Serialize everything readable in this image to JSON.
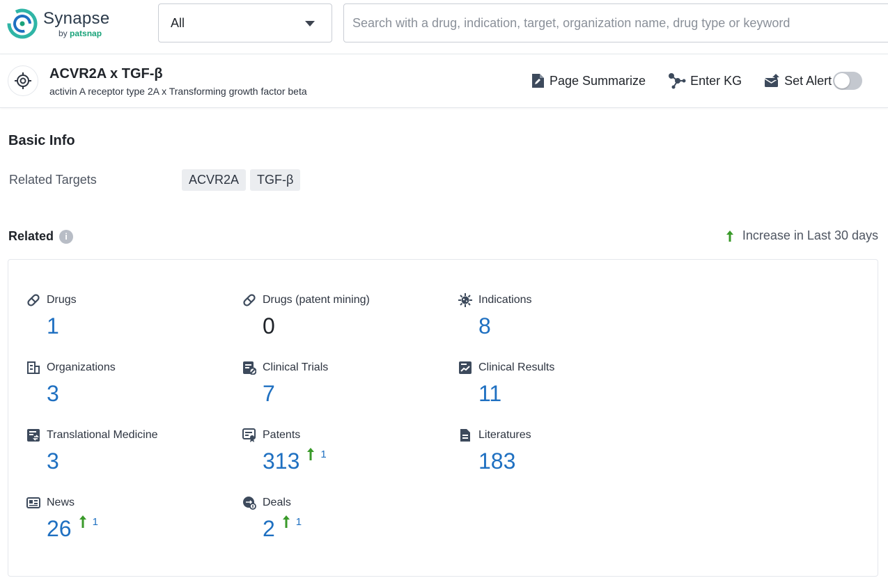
{
  "brand": {
    "name": "Synapse",
    "by_prefix": "by ",
    "by_brand": "patsnap",
    "colors": {
      "teal": "#1aa37a",
      "blue": "#1f70c1",
      "green": "#3a9a2a"
    }
  },
  "search": {
    "scope_value": "All",
    "placeholder": "Search with a drug, indication, target, organization name, drug type or keyword"
  },
  "header": {
    "title": "ACVR2A x TGF-β",
    "subtitle": "activin A receptor type 2A x Transforming growth factor beta",
    "actions": {
      "summarize": "Page Summarize",
      "kg": "Enter KG",
      "alert": "Set Alert"
    },
    "alert_enabled": false
  },
  "basic_info": {
    "title": "Basic Info",
    "related_targets_label": "Related Targets",
    "targets": [
      "ACVR2A",
      "TGF-β"
    ]
  },
  "related": {
    "title": "Related",
    "legend": "Increase in Last 30 days",
    "stats": [
      {
        "label": "Drugs",
        "value": "1",
        "icon": "pill-icon"
      },
      {
        "label": "Drugs (patent mining)",
        "value": "0",
        "icon": "pill-icon"
      },
      {
        "label": "Indications",
        "value": "8",
        "icon": "virus-icon"
      },
      {
        "label": "Organizations",
        "value": "3",
        "icon": "building-icon"
      },
      {
        "label": "Clinical Trials",
        "value": "7",
        "icon": "clipboard-icon"
      },
      {
        "label": "Clinical Results",
        "value": "11",
        "icon": "chart-doc-icon"
      },
      {
        "label": "Translational Medicine",
        "value": "3",
        "icon": "doc-transfer-icon"
      },
      {
        "label": "Patents",
        "value": "313",
        "increase": "1",
        "icon": "patent-icon"
      },
      {
        "label": "Literatures",
        "value": "183",
        "icon": "document-icon"
      },
      {
        "label": "News",
        "value": "26",
        "increase": "1",
        "icon": "newspaper-icon"
      },
      {
        "label": "Deals",
        "value": "2",
        "increase": "1",
        "icon": "deal-icon"
      }
    ]
  }
}
